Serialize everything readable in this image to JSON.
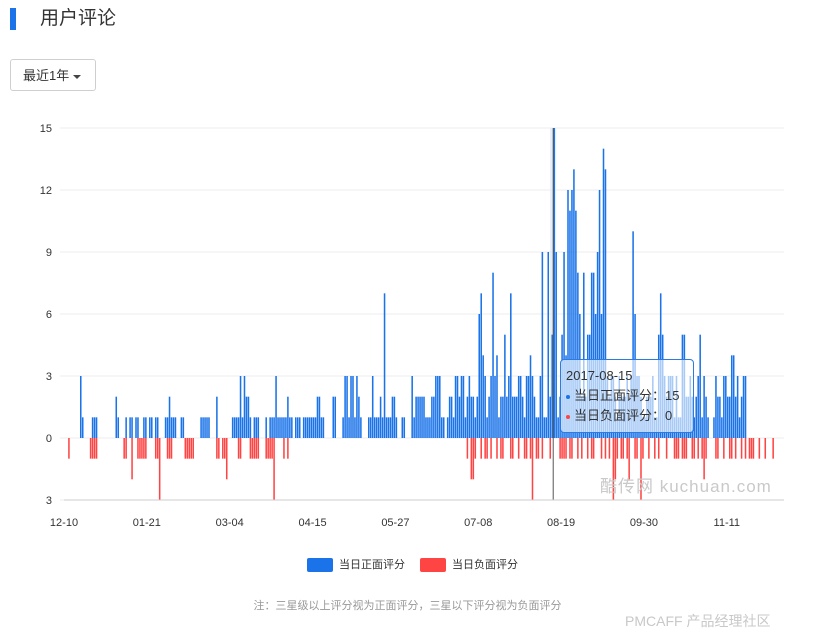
{
  "header": {
    "title": "用户评论"
  },
  "filter": {
    "range_label": "最近1年"
  },
  "colors": {
    "positive": "#1a73e8",
    "negative": "#ff4444",
    "accent": "#1a73e8"
  },
  "tooltip": {
    "date": "2017-08-15",
    "positive_text": "当日正面评分：15",
    "negative_text": "当日负面评分：0"
  },
  "note": "注：三星级以上评分视为正面评分，三星以下评分视为负面评分",
  "watermark": "酷传网 kuchuan.com",
  "brand": "PMCAFF 产品经理社区",
  "chart_data": {
    "type": "bar",
    "title": "",
    "xlabel": "",
    "ylabel": "",
    "ylim": [
      -3,
      15
    ],
    "y_ticks": [
      {
        "value": 15,
        "label": "15"
      },
      {
        "value": 12,
        "label": "12"
      },
      {
        "value": 9,
        "label": "9"
      },
      {
        "value": 6,
        "label": "6"
      },
      {
        "value": 3,
        "label": "3"
      },
      {
        "value": 0,
        "label": "0"
      },
      {
        "value": -3,
        "label": "3"
      }
    ],
    "x_ticks": [
      {
        "day": 0,
        "label": "12-10"
      },
      {
        "day": 42,
        "label": "01-21"
      },
      {
        "day": 84,
        "label": "03-04"
      },
      {
        "day": 126,
        "label": "04-15"
      },
      {
        "day": 168,
        "label": "05-27"
      },
      {
        "day": 210,
        "label": "07-08"
      },
      {
        "day": 252,
        "label": "08-19"
      },
      {
        "day": 294,
        "label": "09-30"
      },
      {
        "day": 336,
        "label": "11-11"
      }
    ],
    "x_range_days": [
      0,
      365
    ],
    "highlight_day": 248,
    "legend": [
      "当日正面评分",
      "当日负面评分"
    ],
    "series": [
      {
        "name": "当日正面评分",
        "values": [
          0,
          0,
          0,
          0,
          0,
          0,
          0,
          0,
          3,
          1,
          0,
          0,
          0,
          0,
          1,
          1,
          1,
          0,
          0,
          0,
          0,
          0,
          0,
          0,
          0,
          0,
          2,
          1,
          0,
          0,
          0,
          1,
          0,
          1,
          1,
          0,
          1,
          1,
          0,
          0,
          1,
          1,
          0,
          1,
          1,
          0,
          1,
          1,
          0,
          0,
          0,
          1,
          1,
          2,
          1,
          1,
          1,
          0,
          0,
          1,
          1,
          0,
          0,
          0,
          0,
          0,
          0,
          0,
          0,
          1,
          1,
          1,
          1,
          1,
          0,
          0,
          0,
          2,
          0,
          0,
          0,
          0,
          0,
          0,
          0,
          1,
          1,
          1,
          1,
          3,
          1,
          3,
          2,
          2,
          1,
          0,
          1,
          1,
          1,
          0,
          0,
          0,
          1,
          0,
          1,
          1,
          1,
          3,
          1,
          1,
          1,
          1,
          1,
          2,
          1,
          1,
          0,
          1,
          1,
          1,
          0,
          1,
          1,
          1,
          1,
          1,
          1,
          1,
          2,
          2,
          1,
          1,
          0,
          0,
          0,
          0,
          2,
          2,
          0,
          0,
          0,
          1,
          3,
          3,
          1,
          3,
          3,
          1,
          3,
          2,
          1,
          0,
          0,
          0,
          1,
          1,
          3,
          1,
          1,
          1,
          2,
          1,
          7,
          1,
          1,
          1,
          2,
          2,
          1,
          0,
          0,
          1,
          1,
          0,
          0,
          0,
          3,
          1,
          2,
          2,
          2,
          2,
          2,
          1,
          1,
          1,
          2,
          2,
          3,
          3,
          3,
          1,
          1,
          0,
          1,
          2,
          2,
          1,
          3,
          3,
          2,
          3,
          3,
          1,
          2,
          3,
          2,
          2,
          1,
          2,
          6,
          7,
          4,
          3,
          1,
          2,
          3,
          8,
          3,
          4,
          1,
          2,
          2,
          5,
          2,
          3,
          7,
          2,
          2,
          2,
          3,
          3,
          2,
          1,
          3,
          3,
          4,
          3,
          2,
          1,
          1,
          3,
          9,
          1,
          1,
          9,
          2,
          5,
          15,
          9,
          1,
          2,
          5,
          9,
          4,
          12,
          11,
          12,
          13,
          11,
          8,
          6,
          2,
          8,
          2,
          5,
          5,
          8,
          8,
          6,
          9,
          12,
          6,
          14,
          13,
          3,
          2,
          3,
          3,
          2,
          1,
          3,
          2,
          2,
          2,
          3,
          2,
          3,
          10,
          6,
          3,
          3,
          2,
          1,
          1,
          2,
          2,
          2,
          3,
          1,
          1,
          5,
          7,
          5,
          3,
          2,
          3,
          3,
          3,
          1,
          3,
          1,
          1,
          5,
          5,
          2,
          2,
          3,
          2,
          1,
          2,
          3,
          5,
          1,
          3,
          2,
          1,
          0,
          0,
          1,
          3,
          2,
          2,
          1,
          3,
          3,
          2,
          2,
          4,
          4,
          2,
          3,
          1,
          2,
          3,
          3
        ],
        "color": "#1a73e8"
      },
      {
        "name": "当日负面评分",
        "values": [
          0,
          0,
          -1,
          0,
          0,
          0,
          0,
          0,
          0,
          0,
          0,
          0,
          0,
          -1,
          -1,
          -1,
          -1,
          0,
          0,
          0,
          0,
          0,
          0,
          0,
          0,
          0,
          0,
          0,
          0,
          0,
          -1,
          -1,
          0,
          0,
          -2,
          0,
          0,
          -1,
          -1,
          -1,
          -1,
          -1,
          0,
          0,
          0,
          0,
          -1,
          -1,
          -3,
          0,
          0,
          0,
          -1,
          -1,
          -1,
          0,
          0,
          0,
          0,
          0,
          0,
          -1,
          -1,
          -1,
          -1,
          -1,
          0,
          0,
          0,
          0,
          0,
          0,
          0,
          0,
          0,
          0,
          0,
          -1,
          -1,
          0,
          -1,
          -1,
          -2,
          0,
          0,
          0,
          0,
          0,
          -1,
          -1,
          0,
          0,
          0,
          0,
          -1,
          -1,
          -1,
          -1,
          -1,
          0,
          0,
          0,
          -1,
          -1,
          -1,
          -1,
          -3,
          0,
          0,
          0,
          0,
          -1,
          0,
          -1,
          0,
          0,
          0,
          0,
          0,
          0,
          0,
          0,
          0,
          0,
          0,
          0,
          0,
          0,
          0,
          0,
          0,
          0,
          0,
          0,
          0,
          0,
          0,
          0,
          0,
          0,
          0,
          0,
          0,
          0,
          0,
          0,
          0,
          0,
          0,
          0,
          0,
          0,
          0,
          0,
          0,
          0,
          0,
          0,
          0,
          0,
          0,
          0,
          0,
          0,
          0,
          0,
          0,
          0,
          0,
          0,
          0,
          0,
          0,
          0,
          0,
          0,
          0,
          0,
          0,
          0,
          0,
          0,
          0,
          0,
          0,
          0,
          0,
          0,
          0,
          0,
          0,
          0,
          0,
          0,
          0,
          0,
          0,
          0,
          0,
          0,
          0,
          0,
          0,
          0,
          -1,
          0,
          -2,
          -2,
          -1,
          0,
          0,
          -1,
          0,
          -1,
          -1,
          0,
          -1,
          0,
          0,
          -1,
          0,
          -1,
          -1,
          0,
          0,
          0,
          -1,
          -1,
          0,
          0,
          -1,
          0,
          0,
          -1,
          -1,
          0,
          -1,
          -3,
          0,
          -1,
          -1,
          0,
          -1,
          0,
          0,
          0,
          -1,
          0,
          0,
          0,
          0,
          -1,
          -1,
          -1,
          -1,
          0,
          -1,
          -1,
          0,
          0,
          -1,
          0,
          -1,
          0,
          0,
          -1,
          0,
          -1,
          -1,
          0,
          0,
          0,
          -1,
          0,
          -1,
          0,
          -1,
          0,
          -3,
          -2,
          -1,
          0,
          -1,
          -1,
          0,
          -1,
          -2,
          0,
          0,
          -1,
          -1,
          0,
          -3,
          -1,
          0,
          0,
          -1,
          0,
          0,
          -1,
          0,
          -1,
          0,
          0,
          0,
          -1,
          0,
          0,
          0,
          -1,
          -1,
          -1,
          0,
          -1,
          -1,
          -1,
          0,
          0,
          -1,
          -1,
          0,
          -1,
          0,
          -1,
          -2,
          -1,
          0,
          0,
          0,
          0,
          -1,
          -1,
          0,
          0,
          -1,
          0,
          0,
          -1,
          -1,
          0,
          -1,
          0,
          0,
          -1,
          0,
          -1,
          0,
          -1,
          -1,
          -1,
          0,
          0,
          -1,
          0,
          0,
          -1,
          0,
          0,
          0,
          -1,
          0,
          0,
          0,
          0
        ],
        "color": "#ff4444"
      }
    ]
  }
}
